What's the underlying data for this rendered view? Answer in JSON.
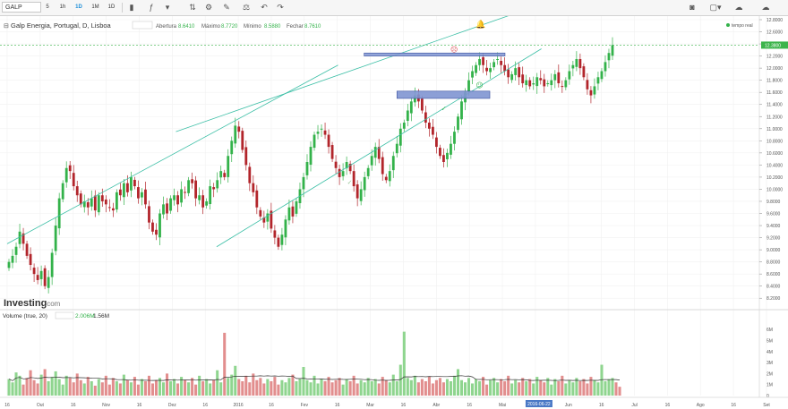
{
  "toolbar": {
    "symbol": "GALP",
    "intervals": [
      "5",
      "1h",
      "1D",
      "1M",
      "1D"
    ],
    "active_interval": 2,
    "icons": [
      "candle-icon",
      "indicator-icon",
      "gear-icon",
      "pencil-icon",
      "line-tool-icon",
      "measure-icon",
      "undo-icon",
      "redo-icon",
      "camera-icon",
      "color-swatch-icon",
      "cloud-save-icon",
      "cloud-load-icon"
    ]
  },
  "main_legend": {
    "title": "Galp Energia, Portugal, D, Lisboa",
    "abertura_label": "Abertura",
    "abertura": "8.6410",
    "maximo_label": "Máximo",
    "maximo": "8.7720",
    "minimo_label": "Mínimo",
    "minimo": "8.5880",
    "fechar_label": "Fechar",
    "fechar": "8.7610",
    "realtime_label": "tempo real"
  },
  "volume_legend": {
    "title": "Volume (true, 20)",
    "value1": "2.006M",
    "value2": "1.56M"
  },
  "logo": {
    "text": "Investing",
    "suffix": ".com"
  },
  "x_labels": [
    "16",
    "Out",
    "16",
    "Nov",
    "16",
    "Dez",
    "16",
    "2016",
    "16",
    "Fev",
    "16",
    "Mar",
    "16",
    "Abr",
    "16",
    "Mai",
    "16",
    "Jun",
    "16",
    "Jul",
    "16",
    "Ago",
    "16",
    "Set"
  ],
  "crosshair_date": "2016-06-22",
  "chart_data": {
    "type": "candlestick",
    "ylim": [
      8.1,
      12.8
    ],
    "yticks": [
      "12.8000",
      "12.6000",
      "12.4000",
      "12.2000",
      "12.0000",
      "11.8000",
      "11.6000",
      "11.4000",
      "11.2000",
      "11.0000",
      "10.8000",
      "10.6000",
      "10.4000",
      "10.2000",
      "10.0000",
      "9.8000",
      "9.6000",
      "9.4000",
      "9.2000",
      "9.0000",
      "8.8000",
      "8.6000",
      "8.4000",
      "8.2000"
    ],
    "last_price": "12.3800",
    "last_price_value": 12.38,
    "volume_ylim": [
      0,
      6.5
    ],
    "volume_ticks": [
      "6M",
      "5M",
      "4M",
      "3M",
      "2M",
      "1M",
      "0"
    ],
    "closes": [
      8.8,
      8.9,
      9.05,
      9.3,
      9.1,
      8.9,
      8.75,
      8.6,
      8.5,
      8.65,
      8.4,
      8.55,
      8.95,
      9.4,
      9.85,
      10.1,
      10.35,
      10.3,
      10.05,
      9.9,
      9.75,
      9.8,
      9.7,
      9.85,
      9.65,
      9.9,
      9.8,
      9.75,
      9.7,
      9.65,
      9.95,
      9.9,
      10.1,
      9.95,
      10.2,
      10.05,
      9.85,
      9.95,
      9.75,
      9.45,
      9.3,
      9.25,
      9.6,
      9.75,
      9.6,
      9.85,
      9.9,
      9.75,
      10.0,
      9.95,
      10.15,
      10.1,
      9.85,
      9.9,
      9.7,
      9.8,
      10.05,
      10.0,
      10.15,
      10.3,
      10.2,
      10.55,
      10.8,
      11.05,
      10.95,
      10.65,
      10.4,
      10.1,
      9.95,
      9.7,
      9.55,
      9.45,
      9.6,
      9.35,
      9.2,
      9.05,
      9.25,
      9.5,
      9.7,
      9.55,
      9.8,
      10.0,
      10.2,
      10.45,
      10.7,
      10.9,
      10.95,
      11.0,
      10.9,
      10.7,
      10.5,
      10.35,
      10.2,
      10.3,
      10.45,
      10.3,
      10.05,
      9.85,
      10.0,
      10.2,
      10.35,
      10.55,
      10.7,
      10.5,
      10.25,
      10.15,
      10.3,
      10.55,
      10.75,
      11.0,
      11.1,
      11.3,
      11.45,
      11.55,
      11.45,
      11.3,
      11.1,
      11.0,
      10.9,
      10.7,
      10.55,
      10.45,
      10.6,
      10.75,
      10.95,
      11.2,
      11.45,
      11.6,
      11.8,
      11.95,
      12.05,
      12.15,
      12.05,
      11.95,
      12.0,
      12.1,
      12.15,
      12.05,
      11.95,
      11.85,
      11.9,
      12.0,
      11.85,
      11.75,
      11.8,
      11.7,
      11.75,
      11.85,
      11.8,
      11.7,
      11.75,
      11.8,
      11.9,
      11.75,
      11.7,
      11.8,
      11.95,
      12.05,
      12.15,
      12.0,
      11.85,
      11.65,
      11.55,
      11.7,
      11.85,
      11.95,
      12.1,
      12.25,
      12.38
    ],
    "volumes": [
      1.5,
      1.2,
      2.1,
      1.8,
      1.0,
      1.6,
      2.3,
      1.4,
      1.1,
      1.9,
      2.4,
      1.3,
      1.7,
      2.2,
      1.5,
      1.0,
      1.8,
      1.6,
      1.2,
      2.0,
      1.4,
      1.1,
      1.7,
      1.3,
      0.9,
      1.5,
      1.2,
      1.8,
      1.0,
      1.6,
      1.3,
      1.1,
      1.9,
      1.4,
      1.2,
      1.7,
      1.0,
      1.5,
      1.3,
      1.8,
      1.1,
      1.4,
      1.6,
      1.2,
      2.0,
      1.3,
      1.5,
      1.1,
      1.7,
      1.4,
      1.2,
      1.6,
      1.0,
      1.8,
      1.3,
      1.5,
      1.1,
      1.4,
      2.3,
      1.2,
      5.7,
      1.6,
      1.9,
      2.7,
      1.5,
      1.3,
      1.8,
      1.2,
      2.0,
      1.4,
      1.6,
      1.1,
      1.5,
      1.3,
      1.7,
      1.0,
      1.4,
      1.2,
      1.6,
      1.9,
      1.3,
      1.5,
      2.6,
      1.4,
      1.2,
      1.8,
      1.1,
      1.5,
      1.3,
      1.7,
      1.2,
      1.4,
      1.6,
      1.0,
      1.5,
      1.3,
      1.8,
      1.1,
      1.4,
      1.2,
      1.6,
      1.3,
      1.5,
      1.1,
      1.7,
      1.4,
      1.2,
      1.9,
      1.3,
      2.8,
      5.8,
      1.6,
      1.4,
      1.8,
      1.2,
      1.5,
      1.3,
      1.7,
      1.1,
      1.4,
      1.6,
      1.2,
      1.5,
      1.3,
      1.8,
      2.4,
      1.4,
      1.2,
      1.6,
      1.1,
      1.5,
      1.3,
      1.7,
      1.0,
      1.4,
      1.6,
      1.2,
      1.5,
      1.3,
      1.8,
      1.1,
      1.4,
      1.2,
      1.6,
      1.3,
      1.5,
      1.1,
      1.7,
      1.4,
      1.2,
      1.6,
      1.0,
      1.5,
      1.3,
      1.8,
      1.1,
      1.4,
      1.2,
      1.6,
      1.3,
      1.5,
      1.1,
      1.7,
      1.4,
      1.2,
      2.8,
      1.3,
      1.5,
      1.6,
      1.2,
      0.8
    ],
    "trendlines": [
      {
        "name": "upper-channel-line",
        "from": [
          0.278,
          10.95
        ],
        "to": [
          0.85,
          12.95
        ],
        "color": "#3cbfa6"
      },
      {
        "name": "lower-channel-line",
        "from": [
          0.345,
          9.05
        ],
        "to": [
          0.88,
          12.32
        ],
        "color": "#3cbfa6"
      },
      {
        "name": "crossing-line",
        "from": [
          0.0,
          9.1
        ],
        "to": [
          0.545,
          12.05
        ],
        "color": "#3cbfa6"
      }
    ],
    "resistance_zone": {
      "from_x": 0.588,
      "to_x": 0.82,
      "y_high": 12.25,
      "y_low": 12.2
    },
    "support_zone": {
      "from_x": 0.642,
      "to_x": 0.795,
      "y_high": 11.62,
      "y_low": 11.5
    }
  },
  "colors": {
    "up": "#33b24a",
    "down": "#b2252b",
    "vol_up": "#8fd58f",
    "vol_down": "#e28e8e",
    "channel": "#3cbfa6",
    "zone": "#7f95d2",
    "last_price": "#3cb44b",
    "ma": "#333333"
  }
}
